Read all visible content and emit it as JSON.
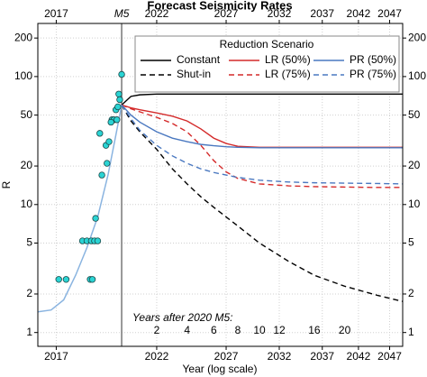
{
  "chart_data": {
    "type": "line",
    "title": "Forecast Seismicity Rates",
    "xlabel": "Year (log scale)",
    "ylabel": "R",
    "xscale": "log",
    "yscale": "log",
    "xlim": [
      2016.3,
      2049.3
    ],
    "ylim": [
      0.78,
      260
    ],
    "xticks": [
      2017,
      2022,
      2027,
      2032,
      2037,
      2042,
      2047
    ],
    "yticks": [
      1,
      2,
      5,
      10,
      20,
      50,
      100,
      200
    ],
    "grid": true,
    "event": {
      "label": "M5",
      "x": 2020,
      "color": "#777777"
    },
    "years_after": {
      "label": "Years after 2020 M5:",
      "ticks": [
        2,
        4,
        6,
        8,
        10,
        12,
        16,
        20
      ]
    },
    "observed": {
      "color": "#2ad4d4",
      "x": [
        2017.1,
        2017.4,
        2018.1,
        2018.3,
        2018.5,
        2018.65,
        2018.8,
        2018.45,
        2018.55,
        2018.7,
        2019.0,
        2019.25,
        2019.2,
        2018.9,
        2019.35,
        2019.5,
        2019.6,
        2019.45,
        2019.7,
        2019.8,
        2019.85,
        2019.9,
        2020.0,
        2019.75
      ],
      "values": [
        2.6,
        2.6,
        5.2,
        5.2,
        5.2,
        5.2,
        5.2,
        2.6,
        2.6,
        7.8,
        17,
        21,
        29,
        36,
        31,
        46,
        46,
        44,
        55,
        58,
        73,
        66,
        104,
        46
      ]
    },
    "fit": {
      "color": "#8ab4e0",
      "x": [
        2016.3,
        2016.8,
        2017.3,
        2017.8,
        2018.3,
        2018.8,
        2019.3,
        2019.7,
        2020.0
      ],
      "values": [
        1.45,
        1.5,
        1.8,
        2.8,
        4.6,
        8,
        17,
        35,
        60
      ]
    },
    "legend_title": "Reduction Scenario",
    "forecast_x": [
      2020,
      2020.5,
      2021,
      2022,
      2023,
      2024,
      2025,
      2026,
      2027,
      2028,
      2030,
      2033,
      2036,
      2040,
      2045,
      2049.3
    ],
    "series": [
      {
        "name": "Constant",
        "color": "#000000",
        "linestyle": "solid",
        "values": [
          60,
          70,
          72,
          73,
          73,
          73,
          73,
          73,
          73,
          73,
          73,
          73,
          73,
          73,
          73,
          73
        ]
      },
      {
        "name": "Shut-in",
        "color": "#000000",
        "linestyle": "dashed",
        "values": [
          60,
          45,
          37,
          27,
          19,
          14.5,
          11.5,
          9.5,
          8,
          6.8,
          5,
          3.6,
          2.8,
          2.3,
          1.95,
          1.75
        ]
      },
      {
        "name": "LR (50%)",
        "color": "#d42a2a",
        "linestyle": "solid",
        "values": [
          60,
          57,
          55,
          52,
          49,
          45,
          39,
          33,
          30,
          28.5,
          28,
          28,
          28,
          28,
          28,
          28
        ]
      },
      {
        "name": "LR (75%)",
        "color": "#d42a2a",
        "linestyle": "dashed",
        "values": [
          60,
          56,
          53,
          48,
          43,
          37,
          29,
          22,
          18,
          16,
          14.5,
          14,
          13.8,
          13.7,
          13.6,
          13.6
        ]
      },
      {
        "name": "PR (50%)",
        "color": "#4a78c0",
        "linestyle": "solid",
        "values": [
          60,
          50,
          44,
          37,
          33,
          31,
          29.5,
          28.8,
          28.3,
          28,
          27.8,
          27.8,
          27.8,
          27.8,
          27.8,
          27.8
        ]
      },
      {
        "name": "PR (75%)",
        "color": "#4a78c0",
        "linestyle": "dashed",
        "values": [
          60,
          47,
          38,
          29,
          24,
          21,
          19,
          17.8,
          17,
          16.3,
          15.5,
          15,
          14.8,
          14.7,
          14.6,
          14.5
        ]
      }
    ]
  }
}
